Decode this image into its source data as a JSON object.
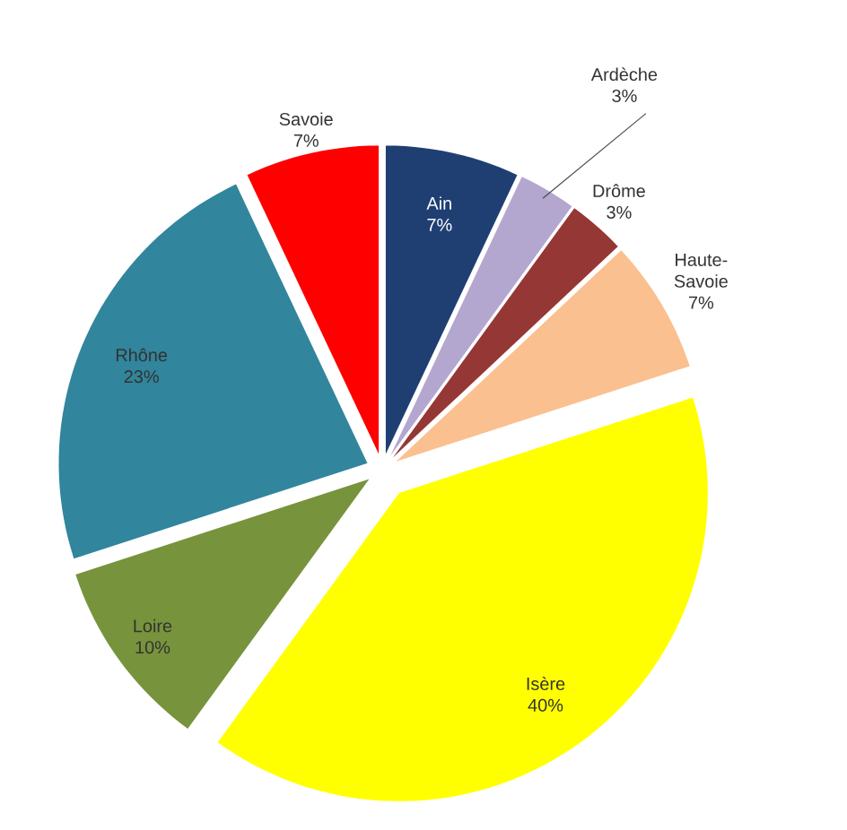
{
  "chart_data": {
    "type": "pie",
    "categories": [
      "Ain",
      "Ardèche",
      "Drôme",
      "Haute-Savoie",
      "Isère",
      "Loire",
      "Rhône",
      "Savoie"
    ],
    "values": [
      7,
      3,
      3,
      7,
      40,
      10,
      23,
      7
    ],
    "value_labels": [
      "7%",
      "3%",
      "3%",
      "7%",
      "40%",
      "10%",
      "23%",
      "7%"
    ],
    "colors": [
      "#1f3f73",
      "#b3a7d0",
      "#953735",
      "#fac090",
      "#ffff00",
      "#77933c",
      "#31859c",
      "#ff0000"
    ]
  }
}
